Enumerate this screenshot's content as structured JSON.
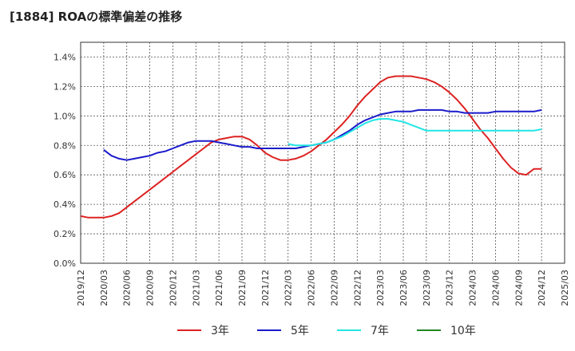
{
  "chart_data": {
    "type": "line",
    "title": "[1884]  ROAの標準偏差の推移",
    "x_ticks": [
      "2019/12",
      "2020/03",
      "2020/06",
      "2020/09",
      "2020/12",
      "2021/03",
      "2021/06",
      "2021/09",
      "2021/12",
      "2022/03",
      "2022/06",
      "2022/09",
      "2022/12",
      "2023/03",
      "2023/06",
      "2023/09",
      "2023/12",
      "2024/03",
      "2024/06",
      "2024/09",
      "2024/12",
      "2025/03"
    ],
    "y_ticks": [
      "0.0%",
      "0.2%",
      "0.4%",
      "0.6%",
      "0.8%",
      "1.0%",
      "1.2%",
      "1.4%"
    ],
    "ylim": [
      0,
      1.5
    ],
    "grid": true,
    "legend_position": "bottom",
    "series": [
      {
        "name": "3年",
        "color": "#dd2222",
        "x": [
          "2019/12",
          "2020/01",
          "2020/02",
          "2020/03",
          "2020/04",
          "2020/05",
          "2020/06",
          "2020/07",
          "2020/08",
          "2020/09",
          "2020/10",
          "2020/11",
          "2020/12",
          "2021/01",
          "2021/02",
          "2021/03",
          "2021/04",
          "2021/05",
          "2021/06",
          "2021/07",
          "2021/08",
          "2021/09",
          "2021/10",
          "2021/11",
          "2021/12",
          "2022/01",
          "2022/02",
          "2022/03",
          "2022/04",
          "2022/05",
          "2022/06",
          "2022/07",
          "2022/08",
          "2022/09",
          "2022/10",
          "2022/11",
          "2022/12",
          "2023/01",
          "2023/02",
          "2023/03",
          "2023/04",
          "2023/05",
          "2023/06",
          "2023/07",
          "2023/08",
          "2023/09",
          "2023/10",
          "2023/11",
          "2023/12",
          "2024/01",
          "2024/02",
          "2024/03",
          "2024/04",
          "2024/05",
          "2024/06",
          "2024/07",
          "2024/08",
          "2024/09",
          "2024/10",
          "2024/11",
          "2024/12"
        ],
        "values": [
          0.32,
          0.31,
          0.31,
          0.31,
          0.32,
          0.34,
          0.38,
          0.42,
          0.46,
          0.5,
          0.54,
          0.58,
          0.62,
          0.66,
          0.7,
          0.74,
          0.78,
          0.82,
          0.84,
          0.85,
          0.86,
          0.86,
          0.84,
          0.8,
          0.75,
          0.72,
          0.7,
          0.7,
          0.71,
          0.73,
          0.76,
          0.8,
          0.84,
          0.89,
          0.94,
          1.0,
          1.07,
          1.13,
          1.18,
          1.23,
          1.26,
          1.27,
          1.27,
          1.27,
          1.26,
          1.25,
          1.23,
          1.2,
          1.16,
          1.11,
          1.05,
          0.98,
          0.91,
          0.85,
          0.78,
          0.71,
          0.65,
          0.61,
          0.6,
          0.64,
          0.64
        ]
      },
      {
        "name": "5年",
        "color": "#1a1acc",
        "x": [
          "2020/03",
          "2020/04",
          "2020/05",
          "2020/06",
          "2020/07",
          "2020/08",
          "2020/09",
          "2020/10",
          "2020/11",
          "2020/12",
          "2021/01",
          "2021/02",
          "2021/03",
          "2021/04",
          "2021/05",
          "2021/06",
          "2021/07",
          "2021/08",
          "2021/09",
          "2021/10",
          "2021/11",
          "2021/12",
          "2022/01",
          "2022/02",
          "2022/03",
          "2022/04",
          "2022/05",
          "2022/06",
          "2022/07",
          "2022/08",
          "2022/09",
          "2022/10",
          "2022/11",
          "2022/12",
          "2023/01",
          "2023/02",
          "2023/03",
          "2023/04",
          "2023/05",
          "2023/06",
          "2023/07",
          "2023/08",
          "2023/09",
          "2023/10",
          "2023/11",
          "2023/12",
          "2024/01",
          "2024/02",
          "2024/03",
          "2024/04",
          "2024/05",
          "2024/06",
          "2024/07",
          "2024/08",
          "2024/09",
          "2024/10",
          "2024/11",
          "2024/12"
        ],
        "values": [
          0.77,
          0.73,
          0.71,
          0.7,
          0.71,
          0.72,
          0.73,
          0.75,
          0.76,
          0.78,
          0.8,
          0.82,
          0.83,
          0.83,
          0.83,
          0.82,
          0.81,
          0.8,
          0.79,
          0.79,
          0.78,
          0.78,
          0.78,
          0.78,
          0.78,
          0.78,
          0.79,
          0.8,
          0.81,
          0.82,
          0.84,
          0.87,
          0.9,
          0.94,
          0.97,
          0.99,
          1.01,
          1.02,
          1.03,
          1.03,
          1.03,
          1.04,
          1.04,
          1.04,
          1.04,
          1.03,
          1.03,
          1.02,
          1.02,
          1.02,
          1.02,
          1.03,
          1.03,
          1.03,
          1.03,
          1.03,
          1.03,
          1.04
        ]
      },
      {
        "name": "7年",
        "color": "#22e5e5",
        "x": [
          "2022/03",
          "2022/04",
          "2022/05",
          "2022/06",
          "2022/07",
          "2022/08",
          "2022/09",
          "2022/10",
          "2022/11",
          "2022/12",
          "2023/01",
          "2023/02",
          "2023/03",
          "2023/04",
          "2023/05",
          "2023/06",
          "2023/07",
          "2023/08",
          "2023/09",
          "2023/10",
          "2023/11",
          "2023/12",
          "2024/01",
          "2024/02",
          "2024/03",
          "2024/04",
          "2024/05",
          "2024/06",
          "2024/07",
          "2024/08",
          "2024/09",
          "2024/10",
          "2024/11",
          "2024/12"
        ],
        "values": [
          0.81,
          0.8,
          0.8,
          0.8,
          0.81,
          0.82,
          0.84,
          0.86,
          0.89,
          0.92,
          0.95,
          0.97,
          0.98,
          0.98,
          0.97,
          0.96,
          0.94,
          0.92,
          0.9,
          0.9,
          0.9,
          0.9,
          0.9,
          0.9,
          0.9,
          0.9,
          0.9,
          0.9,
          0.9,
          0.9,
          0.9,
          0.9,
          0.9,
          0.91
        ]
      },
      {
        "name": "10年",
        "color": "#228822",
        "x": [],
        "values": []
      }
    ]
  }
}
